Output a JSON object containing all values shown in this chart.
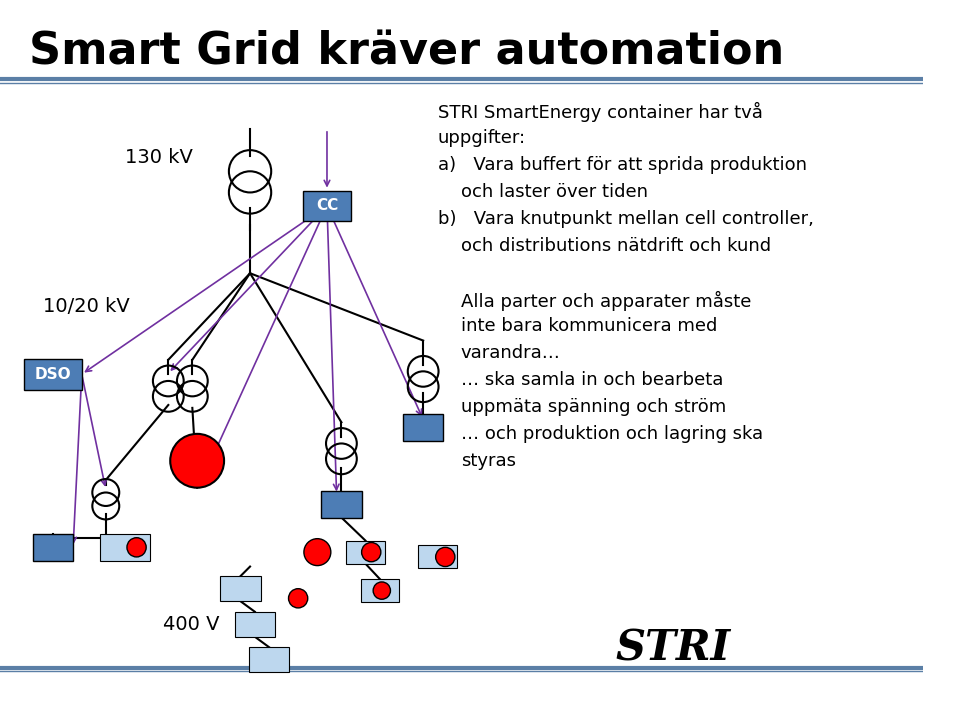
{
  "title": "Smart Grid kräver automation",
  "title_fontsize": 32,
  "title_color": "#000000",
  "bg_color": "#ffffff",
  "header_line_color": "#5b7fa6",
  "footer_line_color": "#5b7fa6",
  "label_130kv": "130 kV",
  "label_1020kv": "10/20 kV",
  "label_dso": "DSO",
  "label_cc": "CC",
  "label_400v": "400 V",
  "right_text_lines": [
    "STRI SmartEnergy container har två",
    "uppgifter:",
    "a)   Vara buffert för att sprida produktion",
    "      och laster över tiden",
    "b)   Vara knutpunkt mellan cell controller,",
    "      och distributions nätdrift och kund",
    "",
    "      Alla parter och apparater måste",
    "      inte bara kommunicera med",
    "      varandra…",
    "      … ska samla in och bearbeta",
    "      uppmäta spänning och ström",
    "      … och produktion och lagring ska",
    "      styras"
  ],
  "arrow_color": "#7030a0",
  "line_color": "#000000",
  "box_color_dark": "#4472c4",
  "box_color_light": "#bdd7ee",
  "red_color": "#ff0000",
  "white_color": "#ffffff"
}
